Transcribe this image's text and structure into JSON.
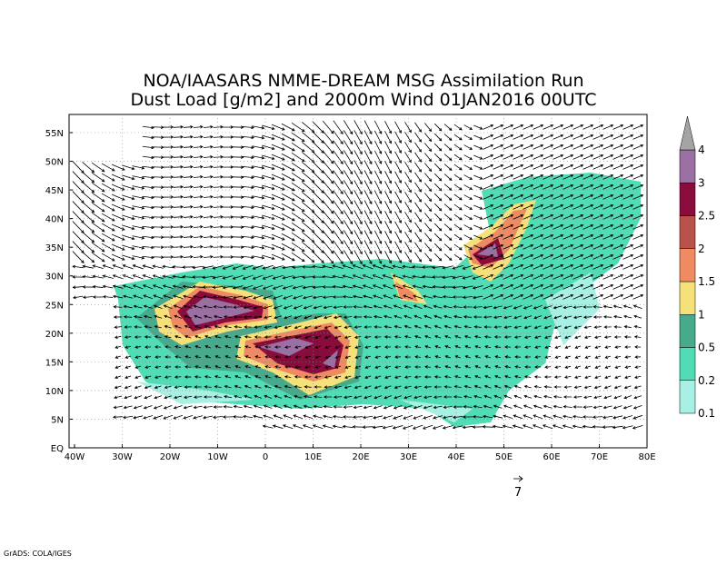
{
  "header": {
    "title_line1": "NOA/IAASARS NMME-DREAM MSG Assimilation Run",
    "title_line2": "Dust Load [g/m2] and 2000m Wind 01JAN2016 00UTC"
  },
  "map": {
    "lon_labels": [
      "40W",
      "30W",
      "20W",
      "10W",
      "0",
      "10E",
      "20E",
      "30E",
      "40E",
      "50E",
      "60E",
      "70E",
      "80E"
    ],
    "lat_labels": [
      "EQ",
      "5N",
      "10N",
      "15N",
      "20N",
      "25N",
      "30N",
      "35N",
      "40N",
      "45N",
      "50N",
      "55N"
    ]
  },
  "colorbar": {
    "labels": [
      "0.1",
      "0.2",
      "0.5",
      "1",
      "1.5",
      "2",
      "2.5",
      "3",
      "4"
    ],
    "colors": [
      "#a8f0e4",
      "#50dcb4",
      "#48aa8c",
      "#f5e07a",
      "#f08a62",
      "#b8524a",
      "#8a0c3c",
      "#9a70a2",
      "#a4a4a4"
    ]
  },
  "reference_vector": {
    "label": "7"
  },
  "footer": {
    "credit": "GrADS: COLA/IGES"
  }
}
